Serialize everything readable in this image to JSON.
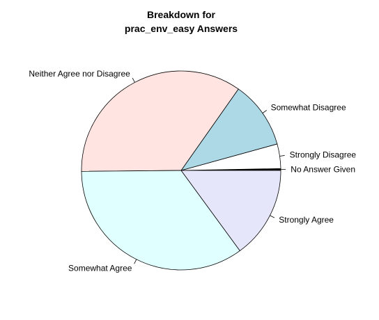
{
  "chart_data": {
    "type": "pie",
    "title_lines": [
      "Breakdown for",
      "prac_env_easy Answers"
    ],
    "slices": [
      {
        "label": "No Answer Given",
        "value": 0.3,
        "color": "#000000"
      },
      {
        "label": "Strongly Disagree",
        "value": 4,
        "color": "#ffffff"
      },
      {
        "label": "Somewhat Disagree",
        "value": 11,
        "color": "#add8e6"
      },
      {
        "label": "Neither Agree nor Disagree",
        "value": 35,
        "color": "#ffe4e1"
      },
      {
        "label": "Somewhat Agree",
        "value": 35,
        "color": "#e0ffff"
      },
      {
        "label": "Strongly Agree",
        "value": 15,
        "color": "#e6e6fa"
      }
    ],
    "start_angle_deg": 0,
    "direction": "counterclockwise",
    "legend": "none"
  }
}
